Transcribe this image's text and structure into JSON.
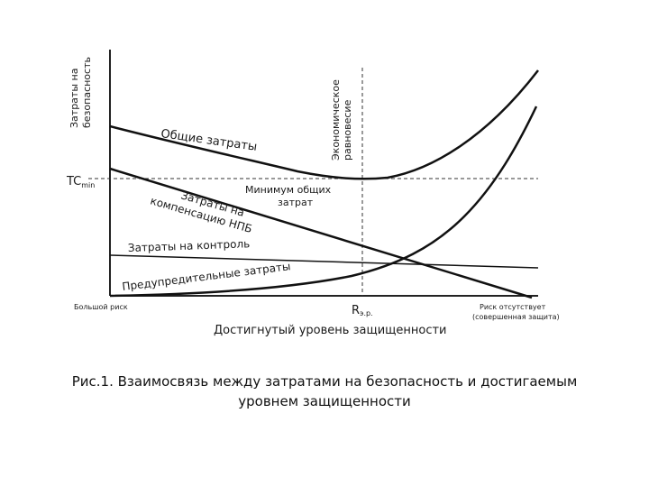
{
  "diagram": {
    "y_axis_label_line1": "Затраты на",
    "y_axis_label_line2": "безопасность",
    "tc_min_main": "TC",
    "tc_min_sub": "min",
    "equilibrium_label_line1": "Экономическое",
    "equilibrium_label_line2": "равновесие",
    "total_costs_label": "Общие затраты",
    "min_total_line1": "Минимум общих",
    "min_total_line2": "затрат",
    "compensation_line1": "Затраты на",
    "compensation_line2": "компенсацию НПБ",
    "control_label": "Затраты на контроль",
    "preventive_label": "Предупредительные затраты",
    "x_left_label": "Большой риск",
    "x_right_label_line1": "Риск отсутствует",
    "x_right_label_line2": "(совершенная защита)",
    "r_label_main": "R",
    "r_label_sub": "э.р.",
    "x_axis_title": "Достигнутый уровень защищенности"
  },
  "caption": {
    "line1": "Рис.1. Взаимосвязь между затратами на безопасность и достигаемым",
    "line2": "уровнем защищенности"
  }
}
